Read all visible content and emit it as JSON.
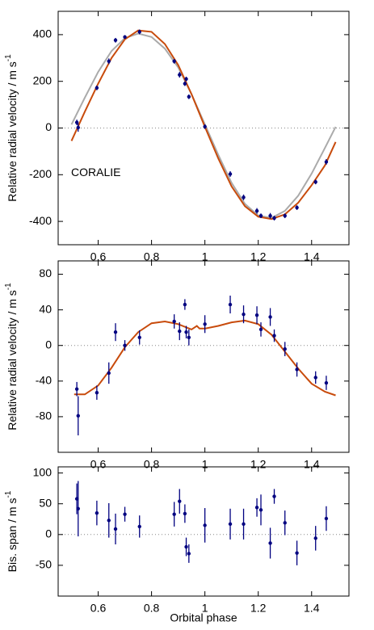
{
  "chart_data": [
    {
      "type": "scatter",
      "ylabel": "Relative radial velocity / m s",
      "ylabel_superscript": "-1",
      "annotation": "CORALIE",
      "xlim": [
        0.45,
        1.54
      ],
      "xticks": [
        0.6,
        0.8,
        1,
        1.2,
        1.4
      ],
      "ylim": [
        -500,
        500
      ],
      "yticks": [
        -400,
        -200,
        0,
        200,
        400
      ],
      "hline": 0,
      "series": [
        {
          "type": "line",
          "color": "#aaaaaa",
          "x": [
            0.5,
            0.55,
            0.6,
            0.65,
            0.7,
            0.75,
            0.8,
            0.85,
            0.9,
            0.95,
            1.0,
            1.05,
            1.1,
            1.15,
            1.2,
            1.25,
            1.3,
            1.35,
            1.4,
            1.45,
            1.49
          ],
          "values": [
            15,
            130,
            240,
            330,
            385,
            405,
            390,
            340,
            260,
            145,
            15,
            -115,
            -235,
            -325,
            -375,
            -385,
            -355,
            -290,
            -195,
            -85,
            5
          ]
        },
        {
          "type": "line",
          "color": "#c84b0c",
          "x": [
            0.5,
            0.55,
            0.6,
            0.65,
            0.7,
            0.75,
            0.8,
            0.85,
            0.9,
            0.95,
            1.0,
            1.05,
            1.1,
            1.15,
            1.2,
            1.25,
            1.3,
            1.35,
            1.4,
            1.45,
            1.49
          ],
          "values": [
            -55,
            70,
            190,
            300,
            380,
            418,
            412,
            360,
            270,
            145,
            5,
            -130,
            -250,
            -335,
            -380,
            -390,
            -370,
            -320,
            -245,
            -160,
            -60
          ]
        },
        {
          "type": "errorbar",
          "color": "#000080",
          "x": [
            0.52,
            0.525,
            0.595,
            0.64,
            0.665,
            0.7,
            0.755,
            0.885,
            0.905,
            0.925,
            0.93,
            0.94,
            1.0,
            1.095,
            1.145,
            1.195,
            1.21,
            1.245,
            1.26,
            1.3,
            1.345,
            1.415,
            1.455
          ],
          "values": [
            24,
            2,
            172,
            286,
            376,
            390,
            412,
            286,
            228,
            190,
            210,
            134,
            6,
            -197,
            -297,
            -355,
            -376,
            -376,
            -386,
            -376,
            -341,
            -231,
            -145
          ],
          "errors": [
            12,
            18,
            10,
            12,
            10,
            8,
            10,
            10,
            12,
            10,
            10,
            10,
            10,
            12,
            12,
            12,
            10,
            12,
            10,
            10,
            10,
            10,
            12
          ]
        }
      ]
    },
    {
      "type": "scatter",
      "ylabel": "Relative radial velocity / m s",
      "ylabel_superscript": "-1",
      "xlim": [
        0.45,
        1.54
      ],
      "xticks": [
        0.6,
        0.8,
        1,
        1.2,
        1.4
      ],
      "ylim": [
        -120,
        95
      ],
      "yticks": [
        -80,
        -40,
        0,
        40,
        80
      ],
      "hline": 0,
      "series": [
        {
          "type": "line",
          "color": "#c84b0c",
          "x": [
            0.51,
            0.55,
            0.6,
            0.65,
            0.7,
            0.75,
            0.8,
            0.85,
            0.9,
            0.95,
            0.97,
            0.98,
            1.0,
            1.05,
            1.1,
            1.15,
            1.2,
            1.25,
            1.3,
            1.35,
            1.4,
            1.45,
            1.49
          ],
          "values": [
            -55,
            -55,
            -45,
            -25,
            -2,
            15,
            25,
            27,
            24,
            18,
            22,
            19,
            19,
            22,
            26,
            28,
            24,
            12,
            -7,
            -26,
            -43,
            -52,
            -56
          ]
        },
        {
          "type": "errorbar",
          "color": "#000080",
          "x": [
            0.52,
            0.525,
            0.595,
            0.64,
            0.665,
            0.7,
            0.755,
            0.885,
            0.905,
            0.925,
            0.93,
            0.94,
            1.0,
            1.095,
            1.145,
            1.195,
            1.21,
            1.245,
            1.26,
            1.3,
            1.345,
            1.415,
            1.455
          ],
          "values": [
            -49,
            -79,
            -53,
            -31,
            15,
            0,
            9,
            27,
            16,
            46,
            15,
            9,
            24,
            46,
            35,
            34,
            18,
            32,
            11,
            -4,
            -27,
            -36,
            -42
          ],
          "errors": [
            8,
            22,
            8,
            12,
            10,
            6,
            8,
            8,
            10,
            6,
            7,
            9,
            10,
            10,
            10,
            10,
            8,
            10,
            7,
            8,
            8,
            7,
            8
          ]
        }
      ]
    },
    {
      "type": "scatter",
      "ylabel": "Bis. span / m s",
      "ylabel_superscript": "-1",
      "xlabel": "Orbital phase",
      "xlim": [
        0.45,
        1.54
      ],
      "xticks": [
        0.6,
        0.8,
        1,
        1.2,
        1.4
      ],
      "ylim": [
        -100,
        110
      ],
      "yticks": [
        -50,
        0,
        50,
        100
      ],
      "hline": 0,
      "series": [
        {
          "type": "errorbar",
          "color": "#000080",
          "x": [
            0.52,
            0.525,
            0.595,
            0.64,
            0.665,
            0.7,
            0.755,
            0.885,
            0.905,
            0.925,
            0.93,
            0.94,
            1.0,
            1.095,
            1.145,
            1.195,
            1.21,
            1.245,
            1.26,
            1.3,
            1.345,
            1.415,
            1.455
          ],
          "values": [
            58,
            42,
            35,
            23,
            9,
            33,
            13,
            33,
            54,
            34,
            -20,
            -31,
            15,
            17,
            17,
            44,
            40,
            -14,
            62,
            19,
            -30,
            -6,
            26
          ],
          "errors": [
            25,
            45,
            20,
            28,
            25,
            12,
            18,
            20,
            20,
            15,
            15,
            15,
            28,
            25,
            25,
            15,
            25,
            25,
            12,
            20,
            20,
            20,
            20
          ]
        }
      ]
    }
  ]
}
